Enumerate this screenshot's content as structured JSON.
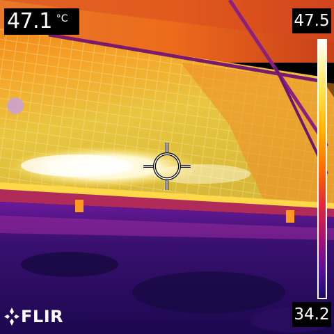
{
  "camera": {
    "brand": "FLIR",
    "brand_logo_icon": "flir-flame-icon"
  },
  "spot": {
    "value": "47.1",
    "unit": "°C",
    "crosshair_icon": "spot-crosshair-icon"
  },
  "scale": {
    "max": "47.5",
    "min": "34.2",
    "palette": "iron"
  },
  "colors": {
    "hot": "#ffffff",
    "warm": "#ffd400",
    "mid": "#ff6a00",
    "cool": "#a01080",
    "cold": "#1a0a66"
  }
}
